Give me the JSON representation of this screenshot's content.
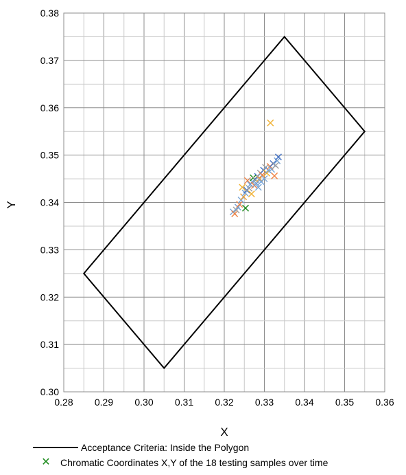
{
  "chart_data": {
    "type": "scatter",
    "title": "",
    "xlabel": "X",
    "ylabel": "Y",
    "xlim": [
      0.28,
      0.36
    ],
    "ylim": [
      0.3,
      0.38
    ],
    "x_ticks": [
      "0.28",
      "0.29",
      "0.30",
      "0.31",
      "0.32",
      "0.33",
      "0.34",
      "0.35",
      "0.36"
    ],
    "y_ticks": [
      "0.30",
      "0.31",
      "0.32",
      "0.33",
      "0.34",
      "0.35",
      "0.36",
      "0.37",
      "0.38"
    ],
    "grid": true,
    "legend_position": "bottom",
    "polygon": {
      "name": "Acceptance Criteria: Inside the Polygon",
      "color": "#000000",
      "points": [
        [
          0.285,
          0.325
        ],
        [
          0.305,
          0.305
        ],
        [
          0.355,
          0.355
        ],
        [
          0.335,
          0.375
        ]
      ]
    },
    "scatter_legend_name": "Chromatic Coordinates X,Y of the 18 testing samples over time",
    "marker_colors": [
      "#7ba7d6",
      "#f08040",
      "#f0b030",
      "#1a8a1a",
      "#4472c4",
      "#a0a0a0",
      "#70a0d8",
      "#e8a040"
    ],
    "points": [
      {
        "x": 0.3315,
        "y": 0.3568,
        "color": "#f0b030"
      },
      {
        "x": 0.3253,
        "y": 0.3388,
        "color": "#1a8a1a"
      },
      {
        "x": 0.3222,
        "y": 0.338,
        "color": "#7ba7d6"
      },
      {
        "x": 0.3226,
        "y": 0.3376,
        "color": "#f08040"
      },
      {
        "x": 0.323,
        "y": 0.3384,
        "color": "#a0a0a0"
      },
      {
        "x": 0.3234,
        "y": 0.339,
        "color": "#70a0d8"
      },
      {
        "x": 0.3238,
        "y": 0.3396,
        "color": "#f08040"
      },
      {
        "x": 0.3242,
        "y": 0.3405,
        "color": "#7ba7d6"
      },
      {
        "x": 0.3245,
        "y": 0.3432,
        "color": "#f0b030"
      },
      {
        "x": 0.3248,
        "y": 0.3412,
        "color": "#e8a040"
      },
      {
        "x": 0.3252,
        "y": 0.342,
        "color": "#7ba7d6"
      },
      {
        "x": 0.3256,
        "y": 0.3426,
        "color": "#4472c4"
      },
      {
        "x": 0.3258,
        "y": 0.3446,
        "color": "#f08040"
      },
      {
        "x": 0.3262,
        "y": 0.343,
        "color": "#a0a0a0"
      },
      {
        "x": 0.3265,
        "y": 0.3438,
        "color": "#70a0d8"
      },
      {
        "x": 0.3268,
        "y": 0.3418,
        "color": "#f0b030"
      },
      {
        "x": 0.327,
        "y": 0.3444,
        "color": "#7ba7d6"
      },
      {
        "x": 0.3272,
        "y": 0.3452,
        "color": "#1a8a1a"
      },
      {
        "x": 0.3275,
        "y": 0.3436,
        "color": "#f08040"
      },
      {
        "x": 0.3278,
        "y": 0.3448,
        "color": "#a0a0a0"
      },
      {
        "x": 0.328,
        "y": 0.344,
        "color": "#70a0d8"
      },
      {
        "x": 0.3283,
        "y": 0.3455,
        "color": "#4472c4"
      },
      {
        "x": 0.3285,
        "y": 0.3432,
        "color": "#7ba7d6"
      },
      {
        "x": 0.3288,
        "y": 0.345,
        "color": "#e8a040"
      },
      {
        "x": 0.329,
        "y": 0.3462,
        "color": "#a0a0a0"
      },
      {
        "x": 0.3292,
        "y": 0.3444,
        "color": "#70a0d8"
      },
      {
        "x": 0.3295,
        "y": 0.3458,
        "color": "#f08040"
      },
      {
        "x": 0.3298,
        "y": 0.3468,
        "color": "#4472c4"
      },
      {
        "x": 0.33,
        "y": 0.345,
        "color": "#7ba7d6"
      },
      {
        "x": 0.3303,
        "y": 0.3474,
        "color": "#a0a0a0"
      },
      {
        "x": 0.3306,
        "y": 0.3462,
        "color": "#f0b030"
      },
      {
        "x": 0.331,
        "y": 0.3468,
        "color": "#70a0d8"
      },
      {
        "x": 0.3314,
        "y": 0.3476,
        "color": "#f08040"
      },
      {
        "x": 0.3318,
        "y": 0.347,
        "color": "#7ba7d6"
      },
      {
        "x": 0.3322,
        "y": 0.3482,
        "color": "#4472c4"
      },
      {
        "x": 0.3325,
        "y": 0.3456,
        "color": "#f08040"
      },
      {
        "x": 0.3328,
        "y": 0.3478,
        "color": "#a0a0a0"
      },
      {
        "x": 0.3332,
        "y": 0.3488,
        "color": "#7ba7d6"
      },
      {
        "x": 0.3335,
        "y": 0.3496,
        "color": "#4472c4"
      }
    ]
  }
}
